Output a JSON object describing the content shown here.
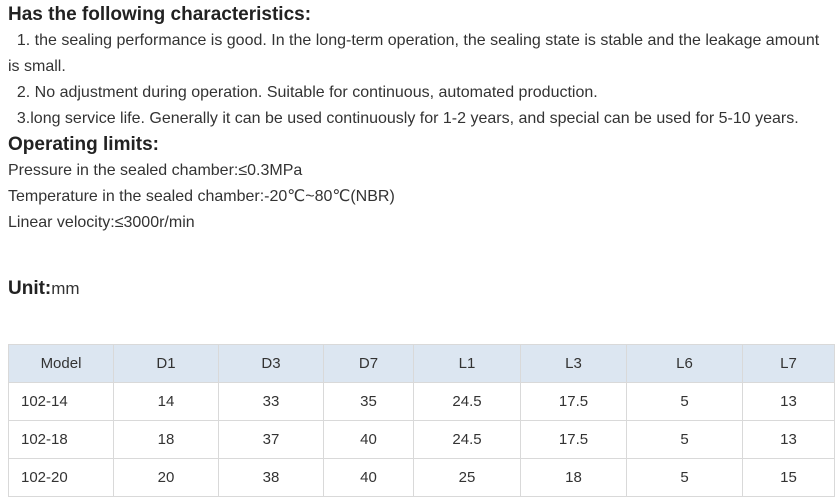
{
  "characteristics": {
    "heading": "Has the following characteristics:",
    "items": [
      "  1. the sealing performance is good. In the long-term operation, the sealing state is stable and the leakage amount is small.",
      "  2. No adjustment during operation. Suitable for continuous, automated production.",
      "  3.long service life. Generally it can be used continuously for 1-2 years, and special can be used for 5-10 years."
    ]
  },
  "operating_limits": {
    "heading": "Operating limits:",
    "lines": [
      "Pressure in the sealed chamber:≤0.3MPa",
      "Temperature in the sealed chamber:-20℃~80℃(NBR)",
      "Linear velocity:≤3000r/min"
    ]
  },
  "unit": {
    "label": "Unit:",
    "value": "mm"
  },
  "table": {
    "columns": [
      "Model",
      "D1",
      "D3",
      "D7",
      "L1",
      "L3",
      "L6",
      "L7"
    ],
    "rows": [
      [
        "102-14",
        "14",
        "33",
        "35",
        "24.5",
        "17.5",
        "5",
        "13"
      ],
      [
        "102-18",
        "18",
        "37",
        "40",
        "24.5",
        "17.5",
        "5",
        "13"
      ],
      [
        "102-20",
        "20",
        "38",
        "40",
        "25",
        "18",
        "5",
        "15"
      ]
    ]
  },
  "colors": {
    "header_bg": "#dce6f1",
    "border": "#d9d9d9",
    "text": "#333333"
  }
}
